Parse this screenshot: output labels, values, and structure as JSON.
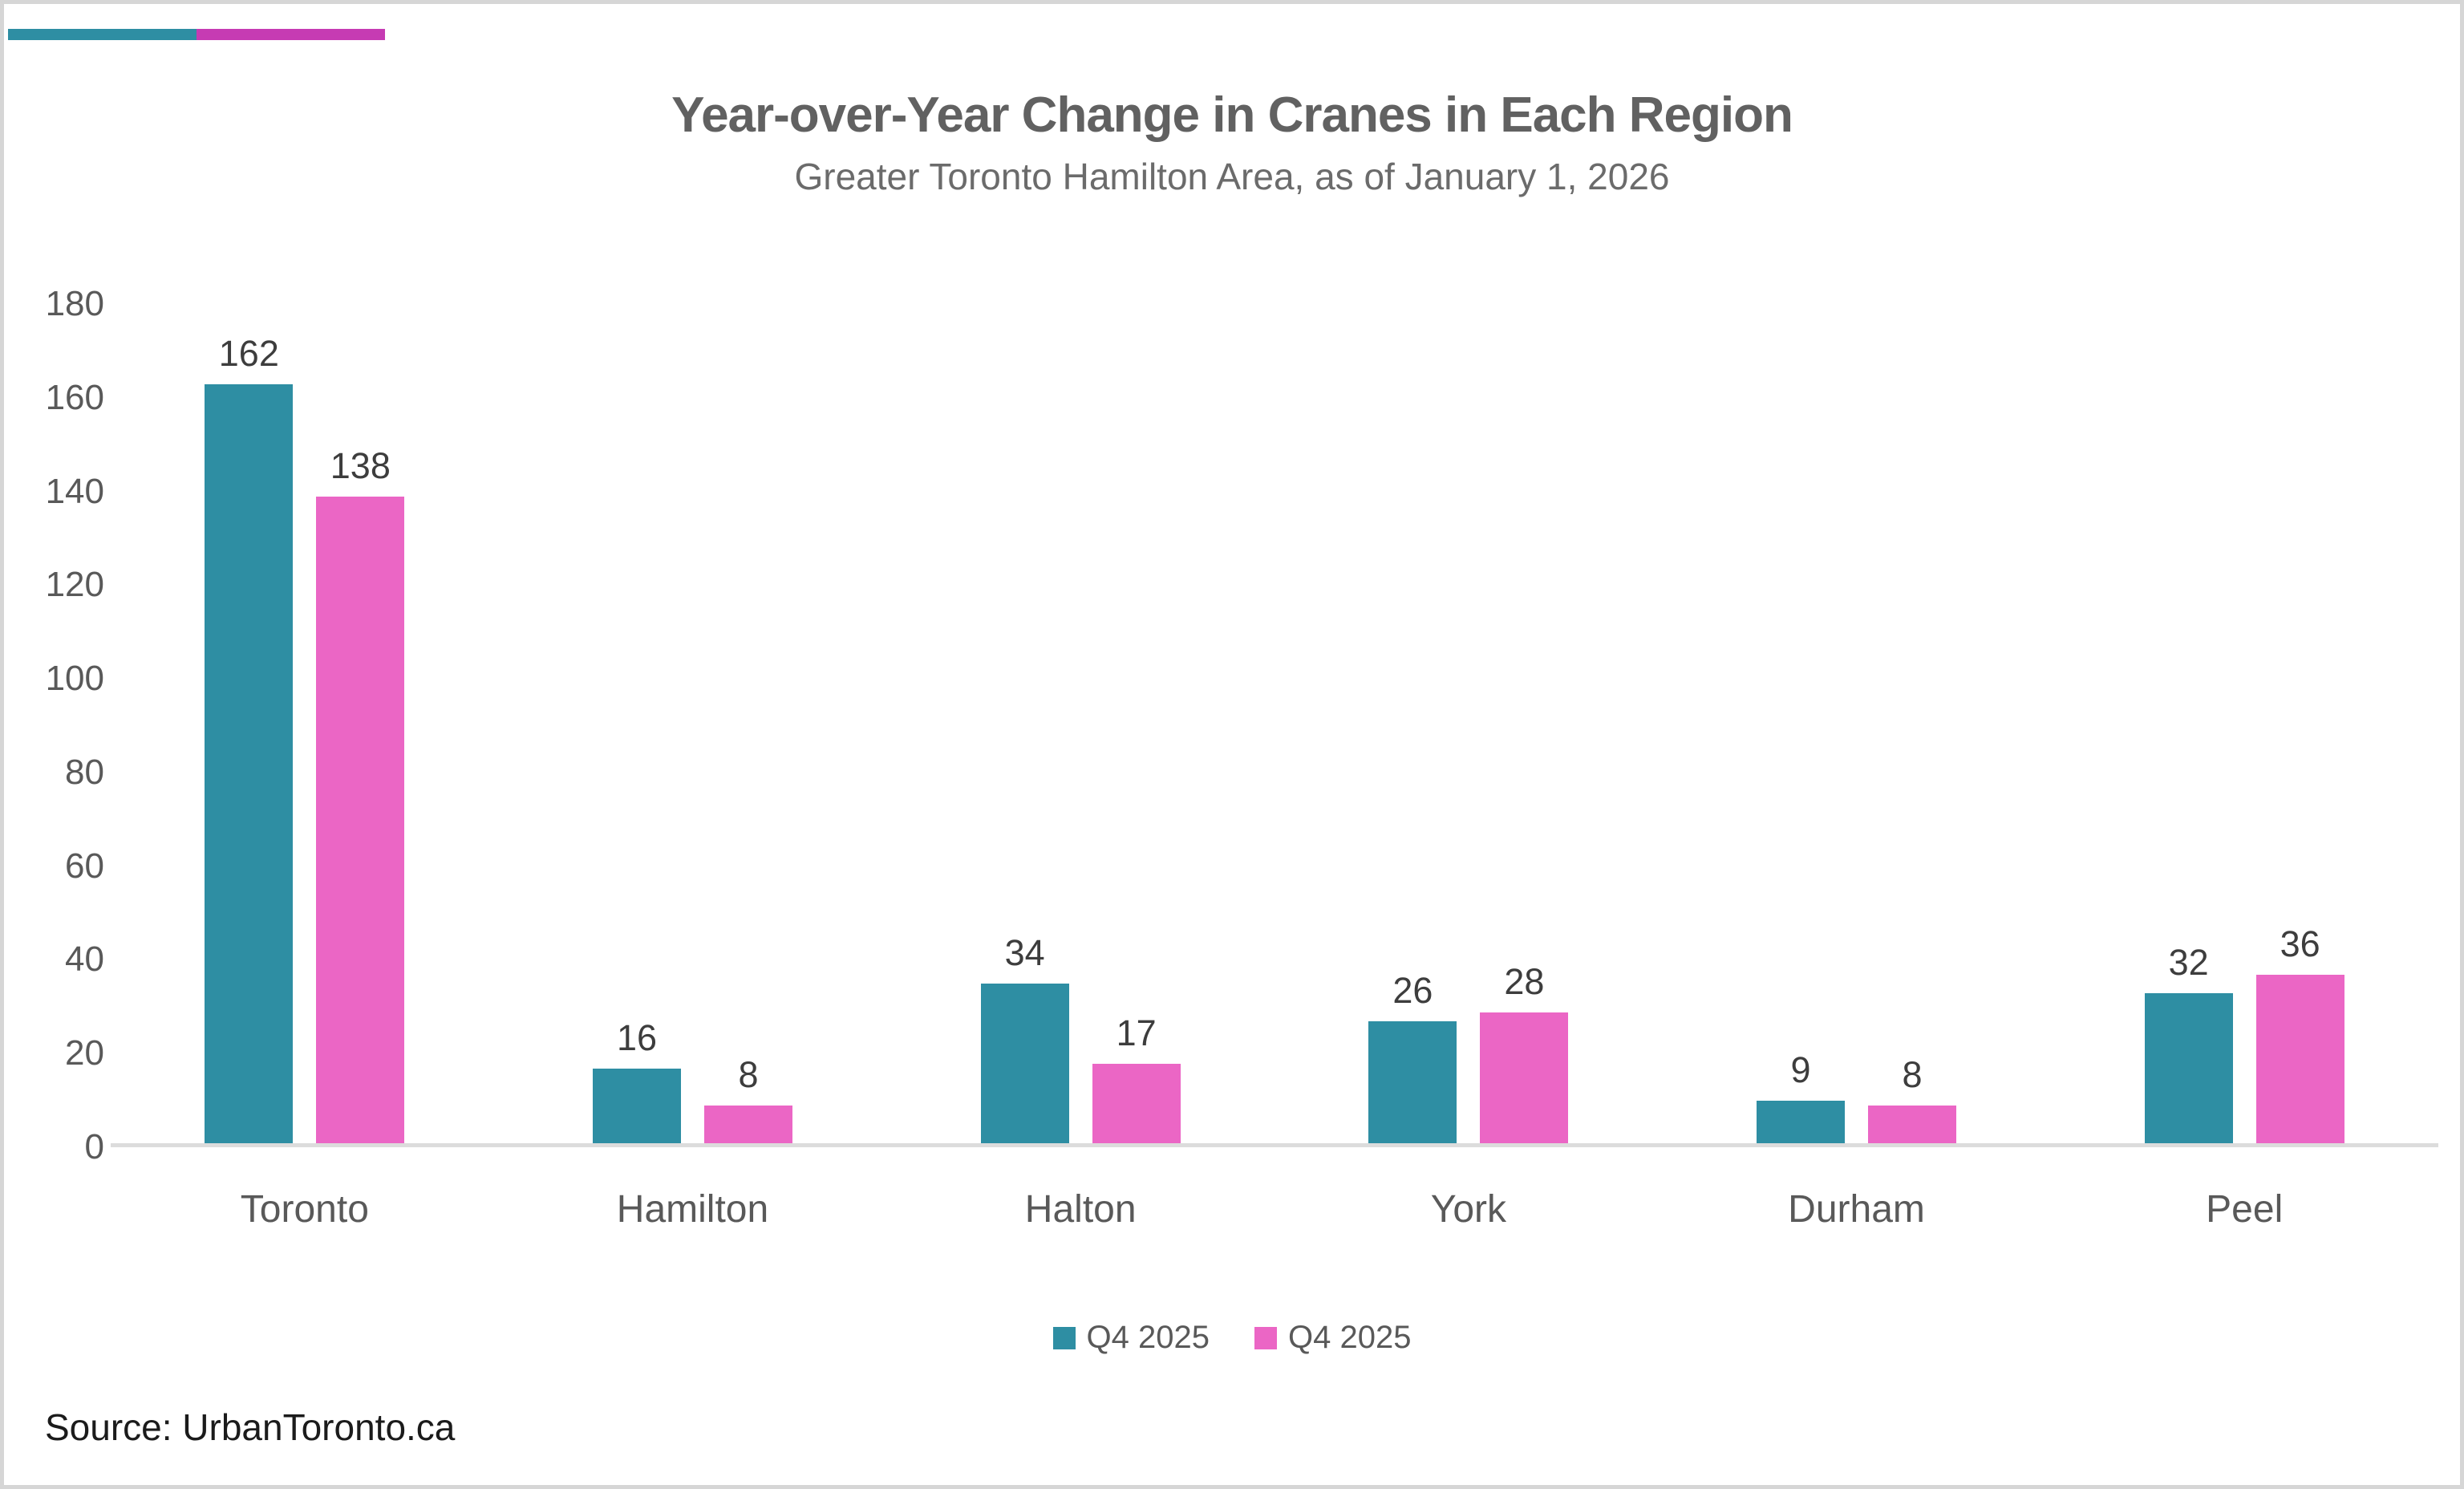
{
  "accent_bar": {
    "teal_color": "#2E8EA3",
    "magenta_color": "#C63BB3"
  },
  "chart_data": {
    "type": "bar",
    "title": "Year-over-Year Change in Cranes in Each Region",
    "subtitle": "Greater Toronto Hamilton Area, as of January 1, 2026",
    "categories": [
      "Toronto",
      "Hamilton",
      "Halton",
      "York",
      "Durham",
      "Peel"
    ],
    "series": [
      {
        "name": "Q4 2025",
        "color": "#2E8EA3",
        "values": [
          162,
          16,
          34,
          26,
          9,
          32
        ]
      },
      {
        "name": "Q4 2025",
        "color": "#EB66C5",
        "values": [
          138,
          8,
          17,
          28,
          8,
          36
        ]
      }
    ],
    "xlabel": "",
    "ylabel": "",
    "ylim": [
      0,
      180
    ],
    "ytick_step": 20,
    "grid": false,
    "legend_position": "bottom",
    "bar_value_labels_shown": true
  },
  "footer": {
    "source": "Source: UrbanToronto.ca"
  }
}
